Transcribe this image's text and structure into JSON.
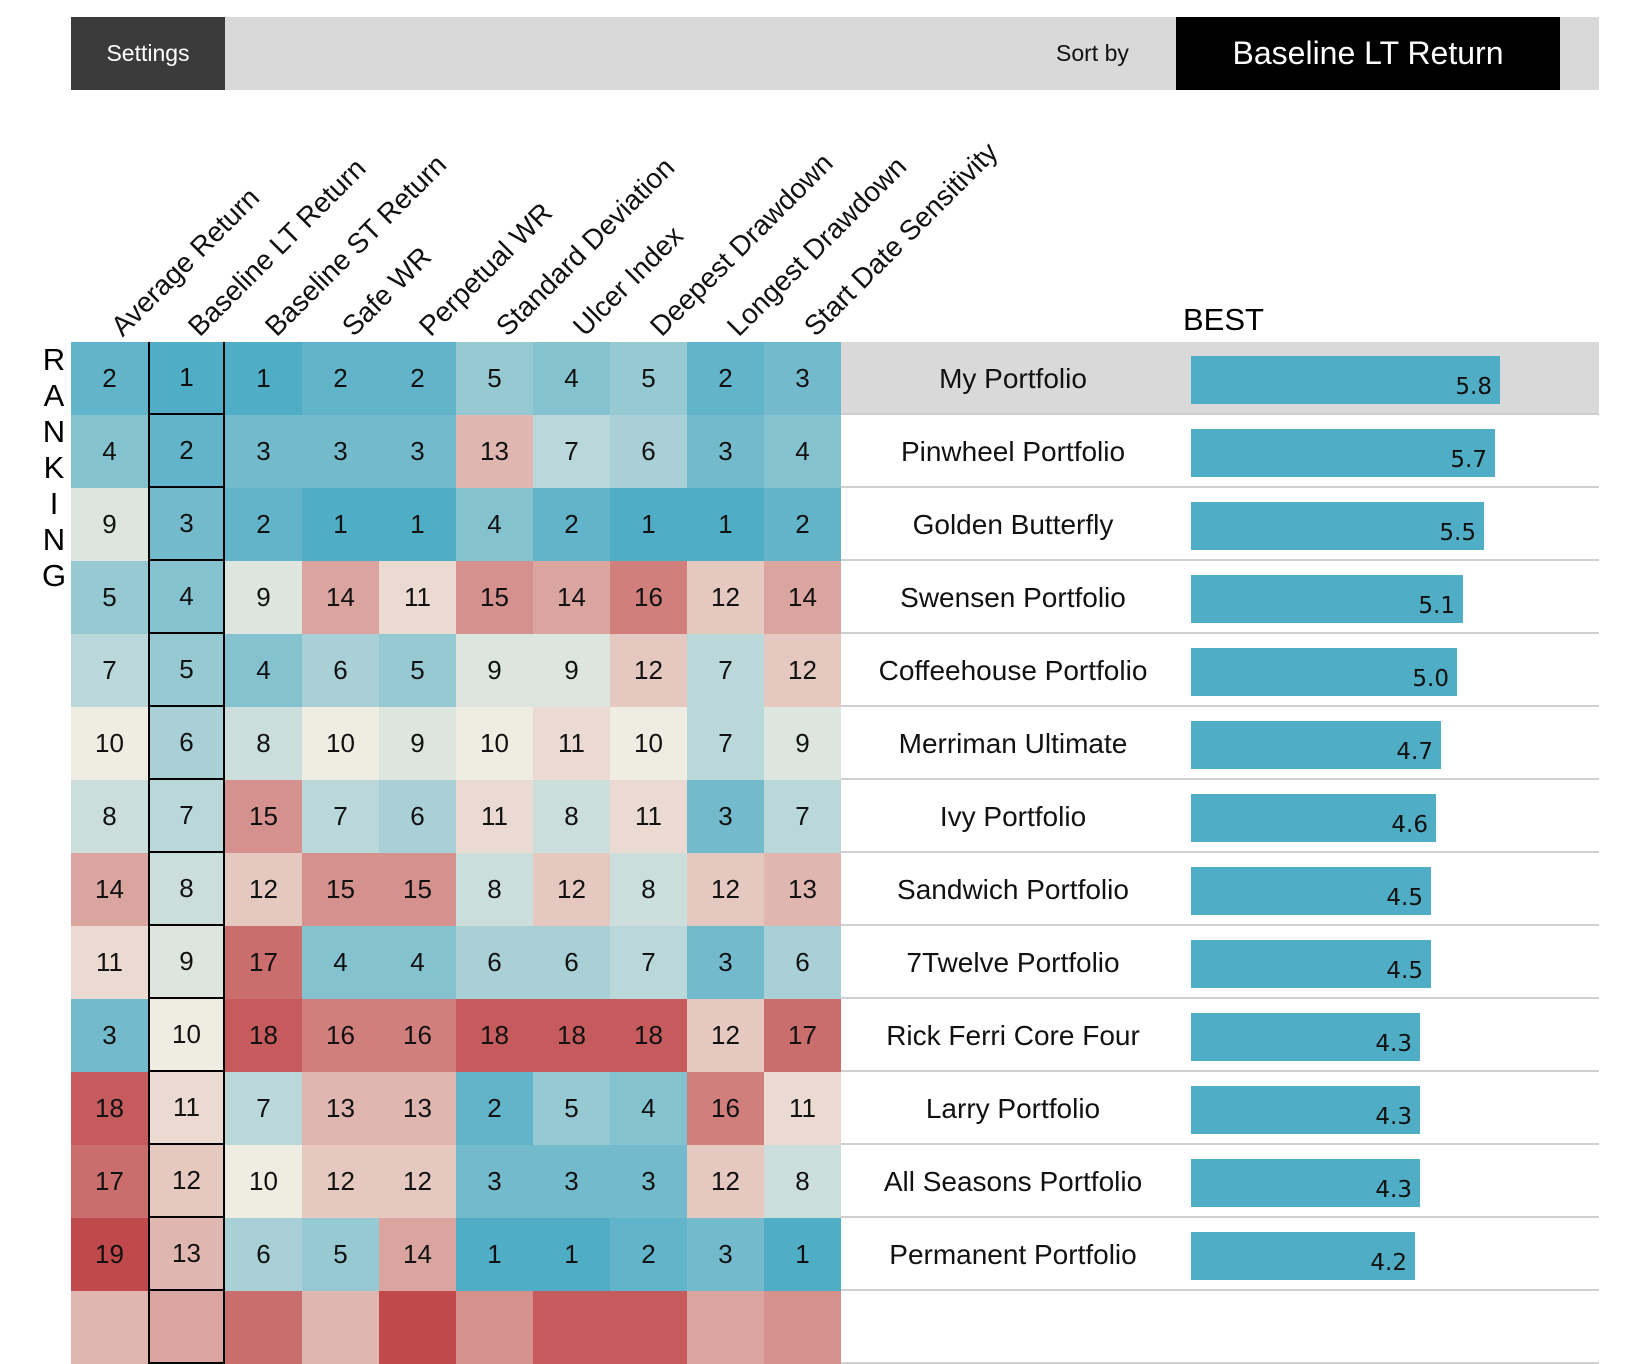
{
  "toolbar": {
    "settings_label": "Settings",
    "sort_by_label": "Sort by",
    "sort_selected": "Baseline LT Return"
  },
  "ranking_label": "RANKING",
  "best_label": "BEST",
  "colors": {
    "best": "#4fadc6",
    "neutral": "#efece2",
    "worst": "#c0494b",
    "bar": "#4fadc6"
  },
  "chart_data": {
    "type": "heatmap",
    "columns": [
      "Average Return",
      "Baseline LT Return",
      "Baseline ST Return",
      "Safe WR",
      "Perpetual WR",
      "Standard Deviation",
      "Ulcer Index",
      "Deepest Drawdown",
      "Longest Drawdown",
      "Start Date Sensitivity"
    ],
    "sorted_column": "Baseline LT Return",
    "rank_max": 19,
    "rows": [
      {
        "name": "My Portfolio",
        "ranks": [
          2,
          1,
          1,
          2,
          2,
          5,
          4,
          5,
          2,
          3
        ],
        "score": "5.8",
        "score_value": 5.8,
        "highlight": true
      },
      {
        "name": "Pinwheel Portfolio",
        "ranks": [
          4,
          2,
          3,
          3,
          3,
          13,
          7,
          6,
          3,
          4
        ],
        "score": "5.7",
        "score_value": 5.7
      },
      {
        "name": "Golden Butterfly",
        "ranks": [
          9,
          3,
          2,
          1,
          1,
          4,
          2,
          1,
          1,
          2
        ],
        "score": "5.5",
        "score_value": 5.5
      },
      {
        "name": "Swensen Portfolio",
        "ranks": [
          5,
          4,
          9,
          14,
          11,
          15,
          14,
          16,
          12,
          14
        ],
        "score": "5.1",
        "score_value": 5.1
      },
      {
        "name": "Coffeehouse Portfolio",
        "ranks": [
          7,
          5,
          4,
          6,
          5,
          9,
          9,
          12,
          7,
          12
        ],
        "score": "5.0",
        "score_value": 5.0
      },
      {
        "name": "Merriman Ultimate",
        "ranks": [
          10,
          6,
          8,
          10,
          9,
          10,
          11,
          10,
          7,
          9
        ],
        "score": "4.7",
        "score_value": 4.7
      },
      {
        "name": "Ivy Portfolio",
        "ranks": [
          8,
          7,
          15,
          7,
          6,
          11,
          8,
          11,
          3,
          7
        ],
        "score": "4.6",
        "score_value": 4.6
      },
      {
        "name": "Sandwich Portfolio",
        "ranks": [
          14,
          8,
          12,
          15,
          15,
          8,
          12,
          8,
          12,
          13
        ],
        "score": "4.5",
        "score_value": 4.5
      },
      {
        "name": "7Twelve Portfolio",
        "ranks": [
          11,
          9,
          17,
          4,
          4,
          6,
          6,
          7,
          3,
          6
        ],
        "score": "4.5",
        "score_value": 4.5
      },
      {
        "name": "Rick Ferri Core Four",
        "ranks": [
          3,
          10,
          18,
          16,
          16,
          18,
          18,
          18,
          12,
          17
        ],
        "score": "4.3",
        "score_value": 4.3
      },
      {
        "name": "Larry Portfolio",
        "ranks": [
          18,
          11,
          7,
          13,
          13,
          2,
          5,
          4,
          16,
          11
        ],
        "score": "4.3",
        "score_value": 4.3
      },
      {
        "name": "All Seasons Portfolio",
        "ranks": [
          17,
          12,
          10,
          12,
          12,
          3,
          3,
          3,
          12,
          8
        ],
        "score": "4.3",
        "score_value": 4.3
      },
      {
        "name": "Permanent Portfolio",
        "ranks": [
          19,
          13,
          6,
          5,
          14,
          1,
          1,
          2,
          3,
          1
        ],
        "score": "4.2",
        "score_value": 4.2
      },
      {
        "name": "",
        "ranks": [
          null,
          null,
          null,
          null,
          null,
          null,
          null,
          null,
          null,
          null
        ],
        "score": "",
        "score_value": null,
        "partial": true,
        "partial_ranks_hint": [
          13,
          14,
          17,
          13,
          19,
          15,
          18,
          18,
          14,
          15
        ]
      }
    ]
  }
}
